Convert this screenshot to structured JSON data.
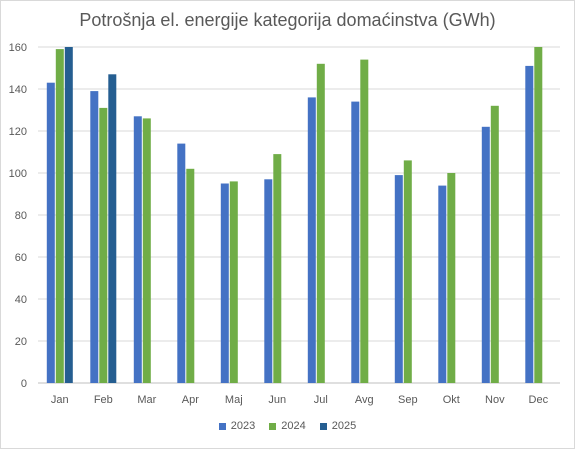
{
  "chart_data": {
    "type": "bar",
    "title": "Potrošnja el. energije kategorija domaćinstva (GWh)",
    "categories": [
      "Jan",
      "Feb",
      "Mar",
      "Apr",
      "Maj",
      "Jun",
      "Jul",
      "Avg",
      "Sep",
      "Okt",
      "Nov",
      "Dec"
    ],
    "series": [
      {
        "name": "2023",
        "color": "#4472c4",
        "values": [
          143,
          139,
          127,
          114,
          95,
          97,
          136,
          134,
          99,
          94,
          122,
          151
        ]
      },
      {
        "name": "2024",
        "color": "#70ad47",
        "values": [
          159,
          131,
          126,
          102,
          96,
          109,
          152,
          154,
          106,
          100,
          132,
          160
        ]
      },
      {
        "name": "2025",
        "color": "#255e91",
        "values": [
          160,
          147,
          null,
          null,
          null,
          null,
          null,
          null,
          null,
          null,
          null,
          null
        ]
      }
    ],
    "ylim": [
      0,
      160
    ],
    "yticks": [
      0,
      20,
      40,
      60,
      80,
      100,
      120,
      140,
      160
    ],
    "grid": true,
    "legend": "bottom"
  }
}
